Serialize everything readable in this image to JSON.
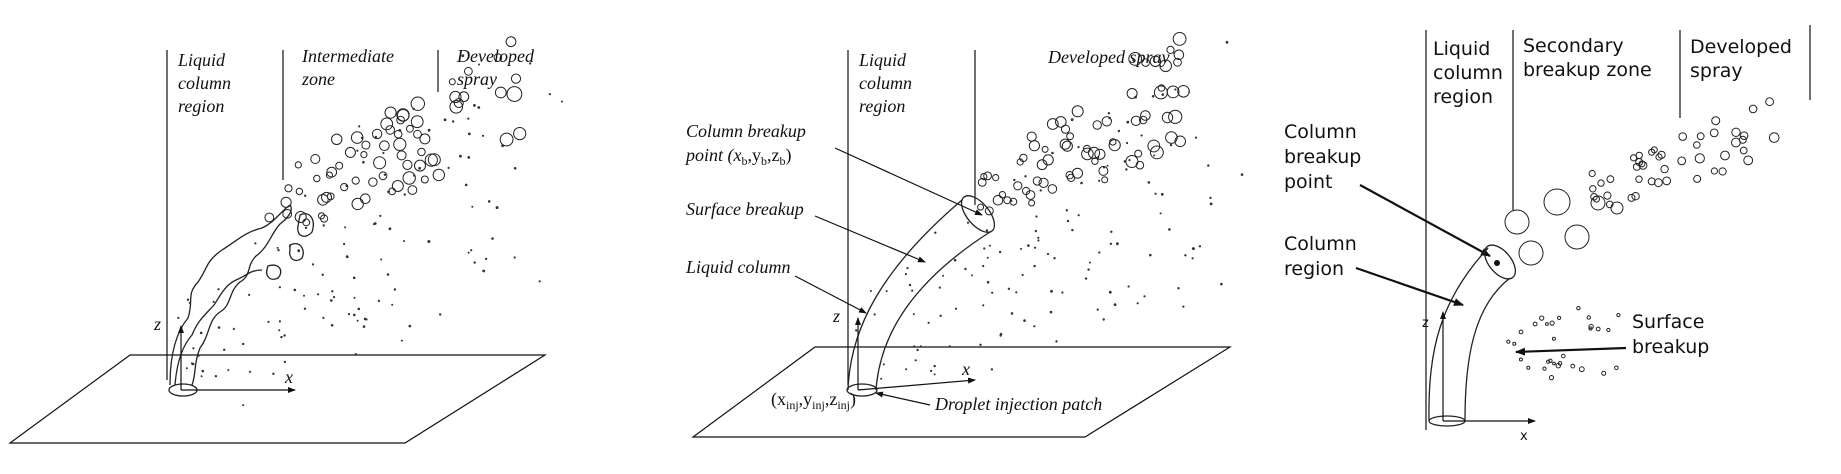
{
  "panel1": {
    "region_liquid": [
      "Liquid",
      "column",
      "region"
    ],
    "region_intermediate": [
      "Intermediate",
      "zone"
    ],
    "region_developed": [
      "Developed",
      "spray"
    ],
    "axis_z": "z",
    "axis_x": "x"
  },
  "panel2": {
    "region_liquid": [
      "Liquid",
      "column",
      "region"
    ],
    "region_developed": "Developed spray",
    "label_breakup_point": "Column breakup",
    "label_breakup_point_coords": "point (x",
    "sub_b": "b",
    "label_surface": "Surface breakup",
    "label_column": "Liquid column",
    "axis_z": "z",
    "axis_x": "x",
    "inj_coords_prefix": "(x",
    "sub_inj": "inj",
    "label_injection_patch": "Droplet injection patch"
  },
  "panel3": {
    "region_liquid": [
      "Liquid",
      "column",
      "region"
    ],
    "region_secondary": [
      "Secondary",
      "breakup zone"
    ],
    "region_developed": [
      "Developed",
      "spray"
    ],
    "label_breakup_point": [
      "Column",
      "breakup",
      "point"
    ],
    "label_column_region": [
      "Column",
      "region"
    ],
    "label_surface": [
      "Surface",
      "breakup"
    ],
    "axis_z": "z",
    "axis_x": "x"
  }
}
